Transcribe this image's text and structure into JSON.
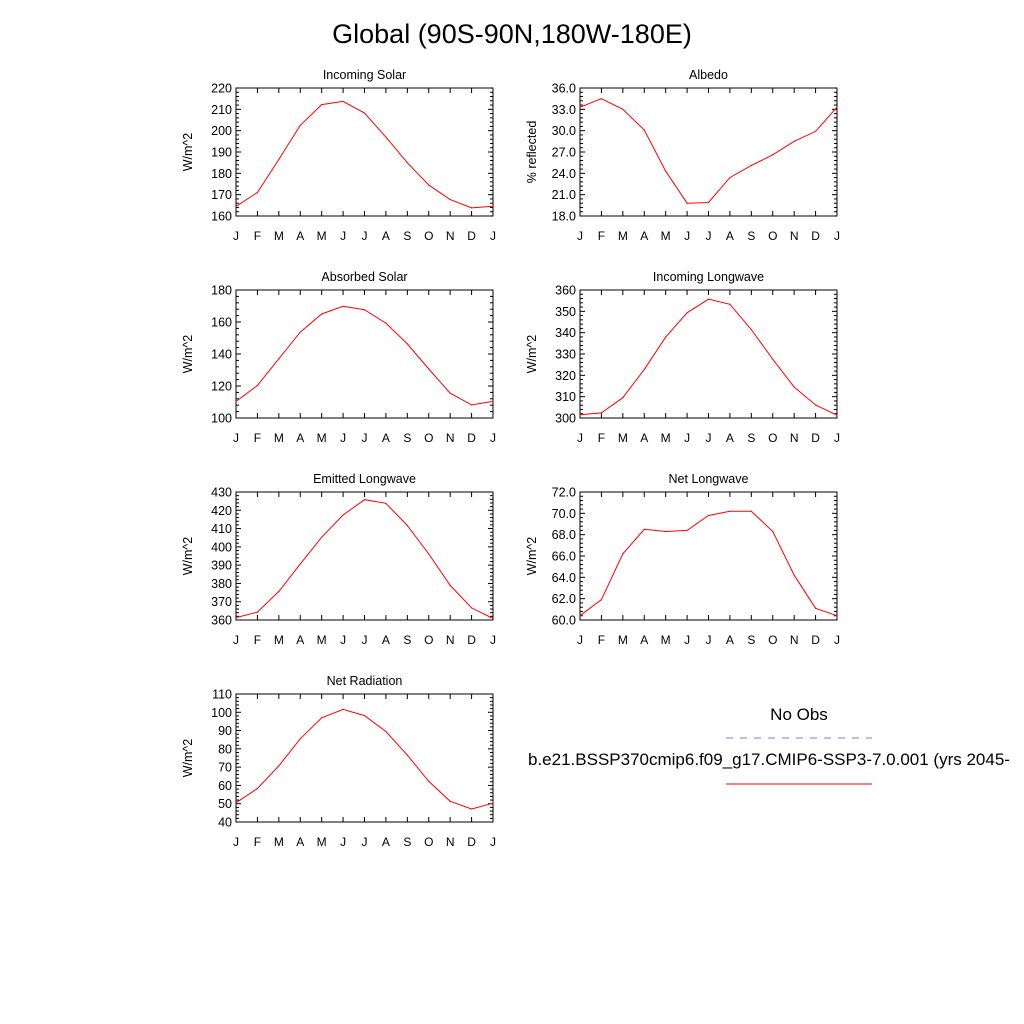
{
  "title": "Global (90S-90N,180W-180E)",
  "legend": {
    "obs_label": "No Obs",
    "case_label": "b.e21.BSSP370cmip6.f09_g17.CMIP6-SSP3-7.0.001 (yrs 2045-",
    "obs_color": "#7777ff",
    "case_color": "#ff0000"
  },
  "chart_data": [
    {
      "type": "line",
      "title": "Incoming Solar",
      "ylabel": "W/m^2",
      "categories": [
        "J",
        "F",
        "M",
        "A",
        "M",
        "J",
        "J",
        "A",
        "S",
        "O",
        "N",
        "D",
        "J"
      ],
      "ylim": [
        160,
        220
      ],
      "yticks": [
        "160",
        "170",
        "180",
        "190",
        "200",
        "210",
        "220"
      ],
      "series": [
        {
          "color": "#ff0000",
          "values": [
            164.5,
            171,
            186.5,
            202.5,
            212.2,
            213.7,
            208.3,
            197,
            185,
            174.5,
            167.7,
            163.8,
            164.6
          ]
        }
      ]
    },
    {
      "type": "line",
      "title": "Albedo",
      "ylabel": "% reflected",
      "categories": [
        "J",
        "F",
        "M",
        "A",
        "M",
        "J",
        "J",
        "A",
        "S",
        "O",
        "N",
        "D",
        "J"
      ],
      "ylim": [
        18.0,
        36.0
      ],
      "yticks": [
        "18.0",
        "21.0",
        "24.0",
        "27.0",
        "30.0",
        "33.0",
        "36.0"
      ],
      "series": [
        {
          "color": "#ff0000",
          "values": [
            33.3,
            34.5,
            33.0,
            30.1,
            24.3,
            19.8,
            19.9,
            23.4,
            25.1,
            26.6,
            28.5,
            29.9,
            33.3
          ]
        }
      ]
    },
    {
      "type": "line",
      "title": "Absorbed Solar",
      "ylabel": "W/m^2",
      "categories": [
        "J",
        "F",
        "M",
        "A",
        "M",
        "J",
        "J",
        "A",
        "S",
        "O",
        "N",
        "D",
        "J"
      ],
      "ylim": [
        100,
        180
      ],
      "yticks": [
        "100",
        "120",
        "140",
        "160",
        "180"
      ],
      "series": [
        {
          "color": "#ff0000",
          "values": [
            110.3,
            120.3,
            137,
            153.7,
            165,
            169.8,
            167.7,
            159.3,
            146.3,
            130.6,
            115.5,
            108.2,
            110.4
          ]
        }
      ]
    },
    {
      "type": "line",
      "title": "Incoming Longwave",
      "ylabel": "W/m^2",
      "categories": [
        "J",
        "F",
        "M",
        "A",
        "M",
        "J",
        "J",
        "A",
        "S",
        "O",
        "N",
        "D",
        "J"
      ],
      "ylim": [
        300,
        360
      ],
      "yticks": [
        "300",
        "310",
        "320",
        "330",
        "340",
        "350",
        "360"
      ],
      "series": [
        {
          "color": "#ff0000",
          "values": [
            301.5,
            302.4,
            309.5,
            322.8,
            337.9,
            349.3,
            355.7,
            353.3,
            341.5,
            327.5,
            314.5,
            306.1,
            301.3
          ]
        }
      ]
    },
    {
      "type": "line",
      "title": "Emitted Longwave",
      "ylabel": "W/m^2",
      "categories": [
        "J",
        "F",
        "M",
        "A",
        "M",
        "J",
        "J",
        "A",
        "S",
        "O",
        "N",
        "D",
        "J"
      ],
      "ylim": [
        360,
        430
      ],
      "yticks": [
        "360",
        "370",
        "380",
        "390",
        "400",
        "410",
        "420",
        "430"
      ],
      "series": [
        {
          "color": "#ff0000",
          "values": [
            361.3,
            364.3,
            375.6,
            390.7,
            405.3,
            417.4,
            425.8,
            423.8,
            411.7,
            396.1,
            378.9,
            366.6,
            360.8
          ]
        }
      ]
    },
    {
      "type": "line",
      "title": "Net Longwave",
      "ylabel": "W/m^2",
      "categories": [
        "J",
        "F",
        "M",
        "A",
        "M",
        "J",
        "J",
        "A",
        "S",
        "O",
        "N",
        "D",
        "J"
      ],
      "ylim": [
        60.0,
        72.0
      ],
      "yticks": [
        "60.0",
        "62.0",
        "64.0",
        "66.0",
        "68.0",
        "70.0",
        "72.0"
      ],
      "series": [
        {
          "color": "#ff0000",
          "values": [
            60.4,
            61.9,
            66.2,
            68.5,
            68.3,
            68.4,
            69.8,
            70.2,
            70.2,
            68.3,
            64.2,
            61.1,
            60.4
          ]
        }
      ]
    },
    {
      "type": "line",
      "title": "Net Radiation",
      "ylabel": "W/m^2",
      "categories": [
        "J",
        "F",
        "M",
        "A",
        "M",
        "J",
        "J",
        "A",
        "S",
        "O",
        "N",
        "D",
        "J"
      ],
      "ylim": [
        40,
        110
      ],
      "yticks": [
        "40",
        "50",
        "60",
        "70",
        "80",
        "90",
        "100",
        "110"
      ],
      "series": [
        {
          "color": "#ff0000",
          "values": [
            50.5,
            58.3,
            70.7,
            85.5,
            97,
            101.6,
            98.2,
            89.5,
            76.6,
            62.2,
            51.3,
            47.1,
            50.3
          ]
        }
      ]
    }
  ]
}
